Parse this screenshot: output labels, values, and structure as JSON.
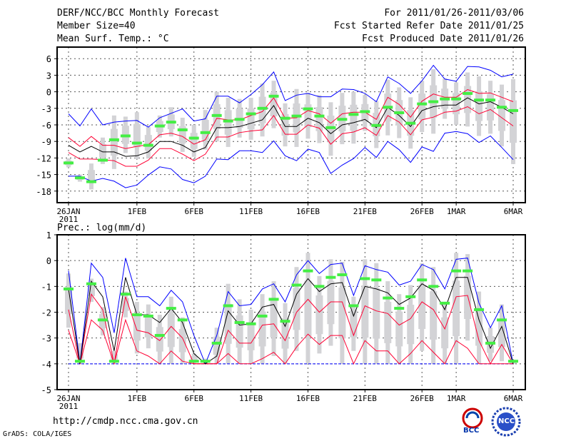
{
  "header": {
    "title": "DERF/NCC/BCC Monthly Forecast",
    "member_size": "Member Size=40",
    "variable": "Mean Surf. Temp.: °C",
    "period": "For 2011/01/26-2011/03/06",
    "started": "Fcst Started Refer Date 2011/01/25",
    "produced": "Fcst Produced Date 2011/01/26"
  },
  "footer": {
    "url": "http://cmdp.ncc.cma.gov.cn",
    "grads": "GrADS: COLA/IGES",
    "logo_bcc": "BCC",
    "logo_ncc": "NCC"
  },
  "colors": {
    "outer": "#0000ff",
    "inner": "#ff0033",
    "mean": "#000000",
    "obs": "#44ee44",
    "box": "#d3d3d6"
  },
  "chart_data": [
    {
      "type": "line",
      "title": "Mean Surf. Temp.: °C",
      "ylim": [
        -20.1,
        8.1
      ],
      "yticks": [
        6,
        3,
        0,
        -3,
        -6,
        -9,
        -12,
        -15,
        -18
      ],
      "xticks": [
        {
          "i": 0,
          "label": "26JAN",
          "sub": "2011"
        },
        {
          "i": 6,
          "label": "1FEB"
        },
        {
          "i": 11,
          "label": "6FEB"
        },
        {
          "i": 16,
          "label": "11FEB"
        },
        {
          "i": 21,
          "label": "16FEB"
        },
        {
          "i": 26,
          "label": "21FEB"
        },
        {
          "i": 31,
          "label": "26FEB"
        },
        {
          "i": 34,
          "label": "1MAR"
        },
        {
          "i": 39,
          "label": "6MAR"
        }
      ],
      "grid": true,
      "series": [
        {
          "name": "max",
          "role": "outer",
          "values": [
            -4.0,
            -6.2,
            -3.1,
            -6.0,
            -5.5,
            -5.3,
            -5.2,
            -6.4,
            -4.7,
            -3.9,
            -3.1,
            -5.3,
            -4.9,
            -0.8,
            -0.8,
            -2.0,
            -0.5,
            1.3,
            3.6,
            -1.6,
            -0.6,
            -0.3,
            -0.9,
            -0.9,
            0.5,
            0.4,
            -0.3,
            -1.8,
            2.7,
            1.5,
            -0.3,
            2.0,
            4.8,
            2.3,
            1.9,
            4.6,
            4.5,
            3.9,
            2.7,
            3.2
          ]
        },
        {
          "name": "min",
          "role": "outer",
          "values": [
            -15.3,
            -15.3,
            -16.2,
            -15.7,
            -16.2,
            -17.4,
            -16.9,
            -15.1,
            -13.6,
            -14.0,
            -15.9,
            -16.5,
            -15.3,
            -12.2,
            -12.3,
            -10.7,
            -10.7,
            -11.0,
            -8.9,
            -11.6,
            -12.5,
            -10.4,
            -11.0,
            -14.8,
            -13.3,
            -12.1,
            -10.1,
            -11.9,
            -9.0,
            -10.5,
            -12.8,
            -10.0,
            -10.8,
            -7.5,
            -7.2,
            -7.6,
            -9.2,
            -8.0,
            -10.1,
            -12.3
          ]
        },
        {
          "name": "upper",
          "role": "inner",
          "values": [
            -8.3,
            -9.9,
            -8.1,
            -9.7,
            -9.7,
            -10.3,
            -9.9,
            -9.6,
            -7.8,
            -7.5,
            -8.1,
            -9.5,
            -8.7,
            -4.8,
            -5.1,
            -5.1,
            -4.3,
            -3.6,
            -1.1,
            -4.8,
            -4.7,
            -3.4,
            -4.0,
            -5.7,
            -4.0,
            -3.7,
            -3.7,
            -5.0,
            -1.0,
            -2.3,
            -4.6,
            -1.7,
            -0.4,
            -1.0,
            -1.0,
            0.4,
            -0.3,
            -0.2,
            -1.0,
            -1.8
          ]
        },
        {
          "name": "lower",
          "role": "inner",
          "values": [
            -11.0,
            -12.2,
            -12.2,
            -12.3,
            -12.5,
            -13.5,
            -13.5,
            -12.4,
            -10.3,
            -10.3,
            -11.3,
            -12.5,
            -11.3,
            -8.2,
            -8.2,
            -7.4,
            -7.1,
            -6.9,
            -4.3,
            -7.7,
            -7.7,
            -6.0,
            -6.6,
            -9.5,
            -7.6,
            -7.3,
            -6.5,
            -7.9,
            -4.3,
            -5.5,
            -7.8,
            -5.1,
            -4.6,
            -3.7,
            -3.5,
            -2.7,
            -4.0,
            -3.2,
            -4.7,
            -6.2
          ]
        },
        {
          "name": "mean",
          "role": "mean",
          "values": [
            -9.7,
            -10.9,
            -9.9,
            -10.9,
            -10.9,
            -11.7,
            -11.6,
            -10.9,
            -9.0,
            -9.0,
            -9.7,
            -10.9,
            -10.1,
            -6.5,
            -6.5,
            -6.3,
            -5.7,
            -5.1,
            -2.5,
            -6.3,
            -6.3,
            -4.8,
            -5.6,
            -7.6,
            -6.0,
            -5.6,
            -5.0,
            -6.5,
            -2.8,
            -4.3,
            -6.3,
            -3.4,
            -2.7,
            -2.4,
            -2.4,
            -1.1,
            -2.2,
            -1.8,
            -2.8,
            -4.0
          ]
        },
        {
          "name": "climate",
          "role": "obs",
          "values": [
            -12.9,
            -15.6,
            -16.3,
            -12.4,
            -8.7,
            -8.0,
            -9.3,
            -9.7,
            -6.2,
            -5.5,
            -6.9,
            -8.4,
            -7.4,
            -4.3,
            -5.3,
            -5.0,
            -4.0,
            -3.0,
            -0.8,
            -4.8,
            -4.4,
            -3.1,
            -4.4,
            -6.5,
            -5.0,
            -4.1,
            -3.6,
            -6.1,
            -2.8,
            -3.8,
            -5.7,
            -2.2,
            -1.8,
            -1.3,
            -1.3,
            -0.3,
            -1.5,
            -1.5,
            -2.8,
            -3.4
          ]
        }
      ],
      "range_bars": {
        "low": [
          -13.7,
          -16.3,
          -17.7,
          -13.1,
          -14.0,
          -11.1,
          -12.2,
          -12.1,
          -8.3,
          -8.1,
          -10.9,
          -11.8,
          -10.5,
          -9.0,
          -10.0,
          -8.3,
          -8.7,
          -8.1,
          -6.6,
          -9.9,
          -10.0,
          -8.5,
          -9.3,
          -11.6,
          -9.5,
          -9.4,
          -7.1,
          -10.2,
          -7.9,
          -8.4,
          -10.3,
          -7.3,
          -7.6,
          -4.9,
          -6.0,
          -6.3,
          -8.0,
          -7.6,
          -9.9,
          -13.1
        ],
        "high": [
          -12.1,
          -15.0,
          -13.0,
          -8.3,
          -4.3,
          -4.5,
          -3.7,
          -6.4,
          -4.3,
          -2.8,
          -4.7,
          -6.0,
          -3.3,
          0.0,
          -1.1,
          -1.3,
          -1.1,
          1.5,
          2.0,
          -2.1,
          0.5,
          -0.2,
          -0.6,
          -1.9,
          -0.2,
          0.0,
          -0.6,
          -1.7,
          2.2,
          0.8,
          -1.0,
          2.0,
          4.1,
          2.4,
          1.7,
          3.5,
          2.8,
          2.0,
          1.3,
          2.3
        ]
      }
    },
    {
      "type": "line",
      "title": "Prec.: log(mm/d)",
      "ylim": [
        -5,
        1
      ],
      "yticks": [
        1,
        0,
        -1,
        -2,
        -3,
        -4,
        -5
      ],
      "xticks": [
        {
          "i": 0,
          "label": "26JAN",
          "sub": "2011"
        },
        {
          "i": 6,
          "label": "1FEB"
        },
        {
          "i": 11,
          "label": "6FEB"
        },
        {
          "i": 16,
          "label": "11FEB"
        },
        {
          "i": 21,
          "label": "16FEB"
        },
        {
          "i": 26,
          "label": "21FEB"
        },
        {
          "i": 31,
          "label": "26FEB"
        },
        {
          "i": 34,
          "label": "1MAR"
        },
        {
          "i": 39,
          "label": "6MAR"
        }
      ],
      "grid": true,
      "baseline": -4,
      "series": [
        {
          "name": "max",
          "role": "outer",
          "values": [
            -0.4,
            -4,
            -0.1,
            -0.65,
            -2.8,
            0.1,
            -1.4,
            -1.4,
            -1.75,
            -1.15,
            -1.6,
            -2.9,
            -4,
            -2.9,
            -1.2,
            -1.75,
            -1.7,
            -1.1,
            -0.9,
            -1.6,
            -0.55,
            0.0,
            -0.5,
            -0.15,
            -0.1,
            -1.35,
            -0.2,
            -0.35,
            -0.45,
            -0.95,
            -0.8,
            -0.15,
            -0.35,
            -1.1,
            0.05,
            0.1,
            -1.65,
            -2.6,
            -1.75,
            -4
          ]
        },
        {
          "name": "upper",
          "role": "inner",
          "values": [
            -1.9,
            -4,
            -1.3,
            -1.9,
            -4,
            -1.4,
            -2.7,
            -2.8,
            -3.1,
            -2.55,
            -3.0,
            -4,
            -4,
            -4,
            -2.7,
            -3.2,
            -3.2,
            -2.5,
            -2.45,
            -3.1,
            -2.0,
            -1.5,
            -2.0,
            -1.6,
            -1.6,
            -2.9,
            -1.75,
            -1.95,
            -2.05,
            -2.5,
            -2.25,
            -1.6,
            -1.9,
            -2.65,
            -1.4,
            -1.35,
            -3.1,
            -4,
            -3.25,
            -4
          ]
        },
        {
          "name": "lower",
          "role": "inner",
          "values": [
            -2.7,
            -4,
            -2.3,
            -2.7,
            -4,
            -2.3,
            -3.5,
            -3.7,
            -4,
            -3.5,
            -3.9,
            -4,
            -4,
            -4,
            -3.6,
            -4,
            -4,
            -3.8,
            -3.55,
            -4,
            -3.35,
            -2.85,
            -3.25,
            -2.9,
            -2.9,
            -4,
            -3.1,
            -3.5,
            -3.5,
            -4,
            -3.6,
            -3.1,
            -3.55,
            -4,
            -3.1,
            -3.4,
            -4,
            -4,
            -4,
            -4
          ]
        },
        {
          "name": "mean",
          "role": "mean",
          "values": [
            -1.1,
            -4,
            -0.8,
            -1.4,
            -3.5,
            -0.65,
            -2.1,
            -2.1,
            -2.4,
            -1.85,
            -2.4,
            -3.6,
            -4,
            -3.7,
            -1.95,
            -2.5,
            -2.45,
            -1.8,
            -1.7,
            -2.55,
            -1.3,
            -0.7,
            -1.2,
            -0.9,
            -0.85,
            -2.15,
            -1.0,
            -1.1,
            -1.25,
            -1.7,
            -1.45,
            -0.9,
            -1.15,
            -1.9,
            -0.65,
            -0.65,
            -2.3,
            -3.4,
            -2.55,
            -4
          ]
        },
        {
          "name": "climate",
          "role": "obs",
          "values": [
            -1.1,
            -3.9,
            -0.9,
            -2.3,
            -3.9,
            -1.3,
            -2.1,
            -2.15,
            -2.9,
            -1.85,
            -2.3,
            -3.9,
            -3.9,
            -3.2,
            -1.75,
            -2.4,
            -2.45,
            -2.15,
            -1.5,
            -2.35,
            -0.95,
            -0.4,
            -1.0,
            -0.65,
            -0.55,
            -1.75,
            -0.7,
            -0.75,
            -1.45,
            -1.85,
            -1.4,
            -0.75,
            -1.0,
            -1.65,
            -0.4,
            -0.4,
            -1.9,
            -3.2,
            -2.3,
            -3.9
          ]
        }
      ],
      "range_bars": {
        "low": [
          -2.6,
          -4,
          -1.6,
          -2.9,
          -4,
          -2.2,
          -3.6,
          -3.4,
          -4,
          -4,
          -4,
          -4,
          -4,
          -4,
          -4,
          -4,
          -4,
          -4,
          -3.7,
          -4,
          -3.5,
          -4,
          -3.6,
          -3.3,
          -4,
          -3.5,
          -4,
          -4,
          -4,
          -4,
          -4,
          -3.5,
          -4,
          -4,
          -4,
          -3.1,
          -4,
          -3.9,
          -3.9,
          -4
        ],
        "high": [
          -0.5,
          -3.2,
          -0.7,
          -1.8,
          -3.5,
          -1.2,
          -1.6,
          -1.7,
          -2.1,
          -1.4,
          -2.2,
          -3.6,
          -3.8,
          -2.6,
          -0.9,
          -1.5,
          -1.9,
          -1.3,
          -0.8,
          -1.65,
          -0.25,
          0.3,
          -0.6,
          0.05,
          -0.05,
          -1.4,
          0.05,
          -0.1,
          -0.8,
          -1.3,
          -0.95,
          -0.1,
          -0.25,
          -1.6,
          0.3,
          0.25,
          -1.2,
          -2.6,
          -1.7,
          -3.9
        ]
      }
    }
  ]
}
